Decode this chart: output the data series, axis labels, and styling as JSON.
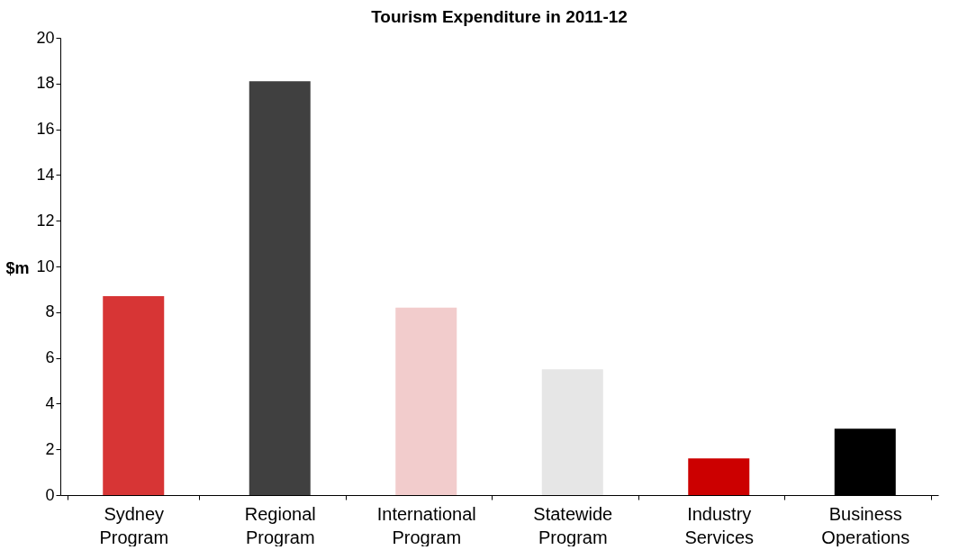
{
  "chart_data": {
    "type": "bar",
    "title": "Tourism Expenditure  in 2011-12",
    "ylabel": "$m",
    "categories": [
      "Sydney Program",
      "Regional Program",
      "International Program",
      "Statewide Program",
      "Industry Services",
      "Business Operations"
    ],
    "values": [
      8.7,
      18.1,
      8.2,
      5.5,
      1.6,
      2.9
    ],
    "colors": [
      "#d73535",
      "#404040",
      "#f2cccc",
      "#e6e6e6",
      "#cc0000",
      "#000000"
    ],
    "ylim": [
      0,
      20
    ],
    "yticks": [
      0,
      2,
      4,
      6,
      8,
      10,
      12,
      14,
      16,
      18,
      20
    ],
    "grid": false
  }
}
